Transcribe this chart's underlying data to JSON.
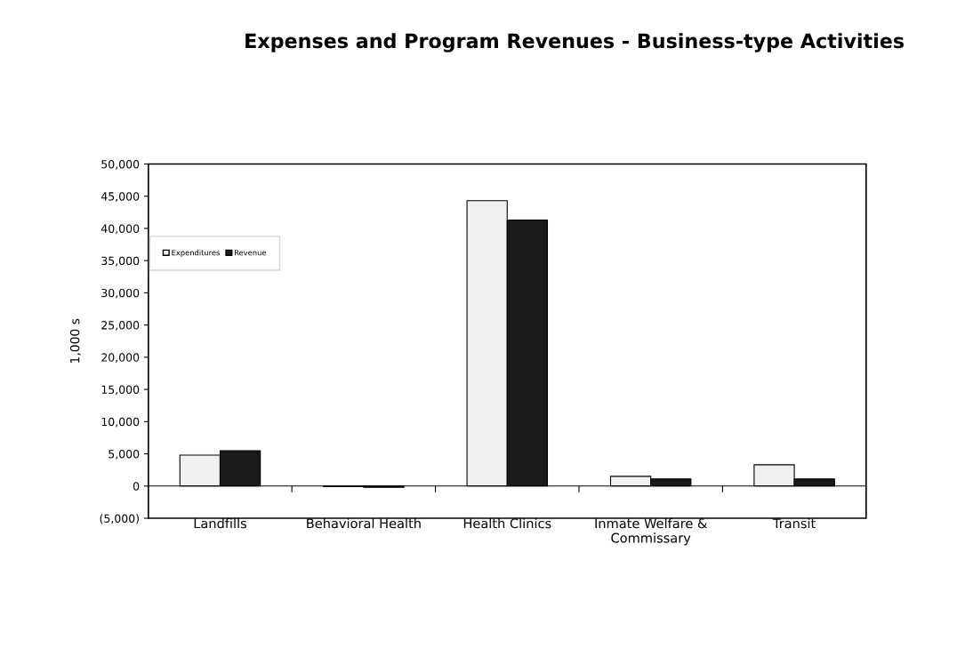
{
  "chart_data": {
    "type": "bar",
    "title": "Expenses and Program Revenues - Business-type Activities",
    "ylabel": "1,000 s",
    "categories": [
      "Landfills",
      "Behavioral Health",
      "Health Clinics",
      "Inmate Welfare &\nCommissary",
      "Transit"
    ],
    "series": [
      {
        "name": "Expenditures",
        "color": "#f0f0f0",
        "values": [
          4800,
          -100,
          44300,
          1500,
          3300
        ]
      },
      {
        "name": "Revenue",
        "color": "#1a1a1a",
        "values": [
          5500,
          -200,
          41300,
          1100,
          1100
        ]
      }
    ],
    "ylim": [
      -5000,
      50000
    ],
    "yticks": [
      {
        "value": -5000,
        "label": "(5,000)"
      },
      0,
      {
        "value": 5000,
        "label": "5,000"
      },
      {
        "value": 10000,
        "label": "10,000"
      },
      {
        "value": 15000,
        "label": "15,000"
      },
      {
        "value": 20000,
        "label": "20,000"
      },
      {
        "value": 25000,
        "label": "25,000"
      },
      {
        "value": 30000,
        "label": "30,000"
      },
      {
        "value": 35000,
        "label": "35,000"
      },
      {
        "value": 40000,
        "label": "40,000"
      },
      {
        "value": 45000,
        "label": "45,000"
      },
      {
        "value": 50000,
        "label": "50,000"
      }
    ],
    "grid": false,
    "legend": "top left"
  }
}
